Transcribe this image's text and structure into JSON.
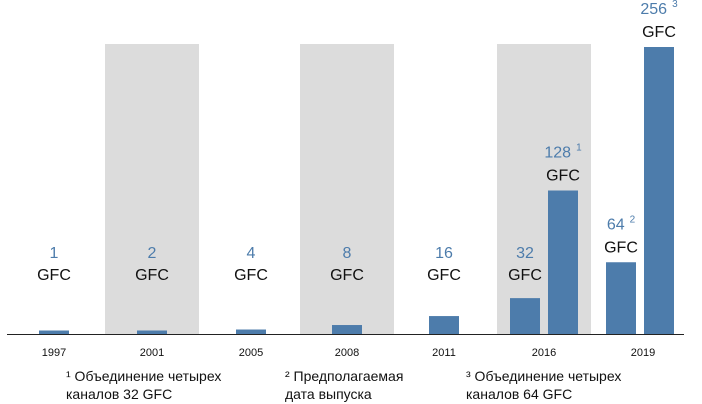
{
  "chart_data": {
    "type": "bar",
    "title": "",
    "xlabel": "",
    "ylabel": "",
    "ylim": [
      0,
      256
    ],
    "grid": false,
    "legend": "none",
    "categories": [
      "1997",
      "2001",
      "2005",
      "2008",
      "2011",
      "2016",
      "2019"
    ],
    "shaded_categories": [
      "2001",
      "2008",
      "2016"
    ],
    "bars": [
      {
        "category": "1997",
        "value": 1,
        "number_label": "1",
        "footnote_mark": "",
        "unit_label": "GFC"
      },
      {
        "category": "2001",
        "value": 2,
        "number_label": "2",
        "footnote_mark": "",
        "unit_label": "GFC"
      },
      {
        "category": "2005",
        "value": 4,
        "number_label": "4",
        "footnote_mark": "",
        "unit_label": "GFC"
      },
      {
        "category": "2008",
        "value": 8,
        "number_label": "8",
        "footnote_mark": "",
        "unit_label": "GFC"
      },
      {
        "category": "2011",
        "value": 16,
        "number_label": "16",
        "footnote_mark": "",
        "unit_label": "GFC"
      },
      {
        "category": "2016",
        "value": 32,
        "number_label": "32",
        "footnote_mark": "",
        "unit_label": "GFC"
      },
      {
        "category": "2016",
        "value": 128,
        "number_label": "128",
        "footnote_mark": "1",
        "unit_label": "GFC"
      },
      {
        "category": "2019",
        "value": 64,
        "number_label": "64",
        "footnote_mark": "2",
        "unit_label": "GFC"
      },
      {
        "category": "2019",
        "value": 256,
        "number_label": "256",
        "footnote_mark": "3",
        "unit_label": "GFC"
      }
    ],
    "colors": {
      "bar": "#4d7cab",
      "number_label": "#4d7cab",
      "unit_label": "#111111",
      "band": "#dcdcdc",
      "axis": "#222222"
    }
  },
  "footnotes": [
    {
      "mark": "1",
      "text": "¹ Объединение четырех\nканалов 32 GFC"
    },
    {
      "mark": "2",
      "text": "² Предполагаемая\nдата выпуска"
    },
    {
      "mark": "3",
      "text": "³ Объединение четырех\nканалов 64 GFC"
    }
  ]
}
